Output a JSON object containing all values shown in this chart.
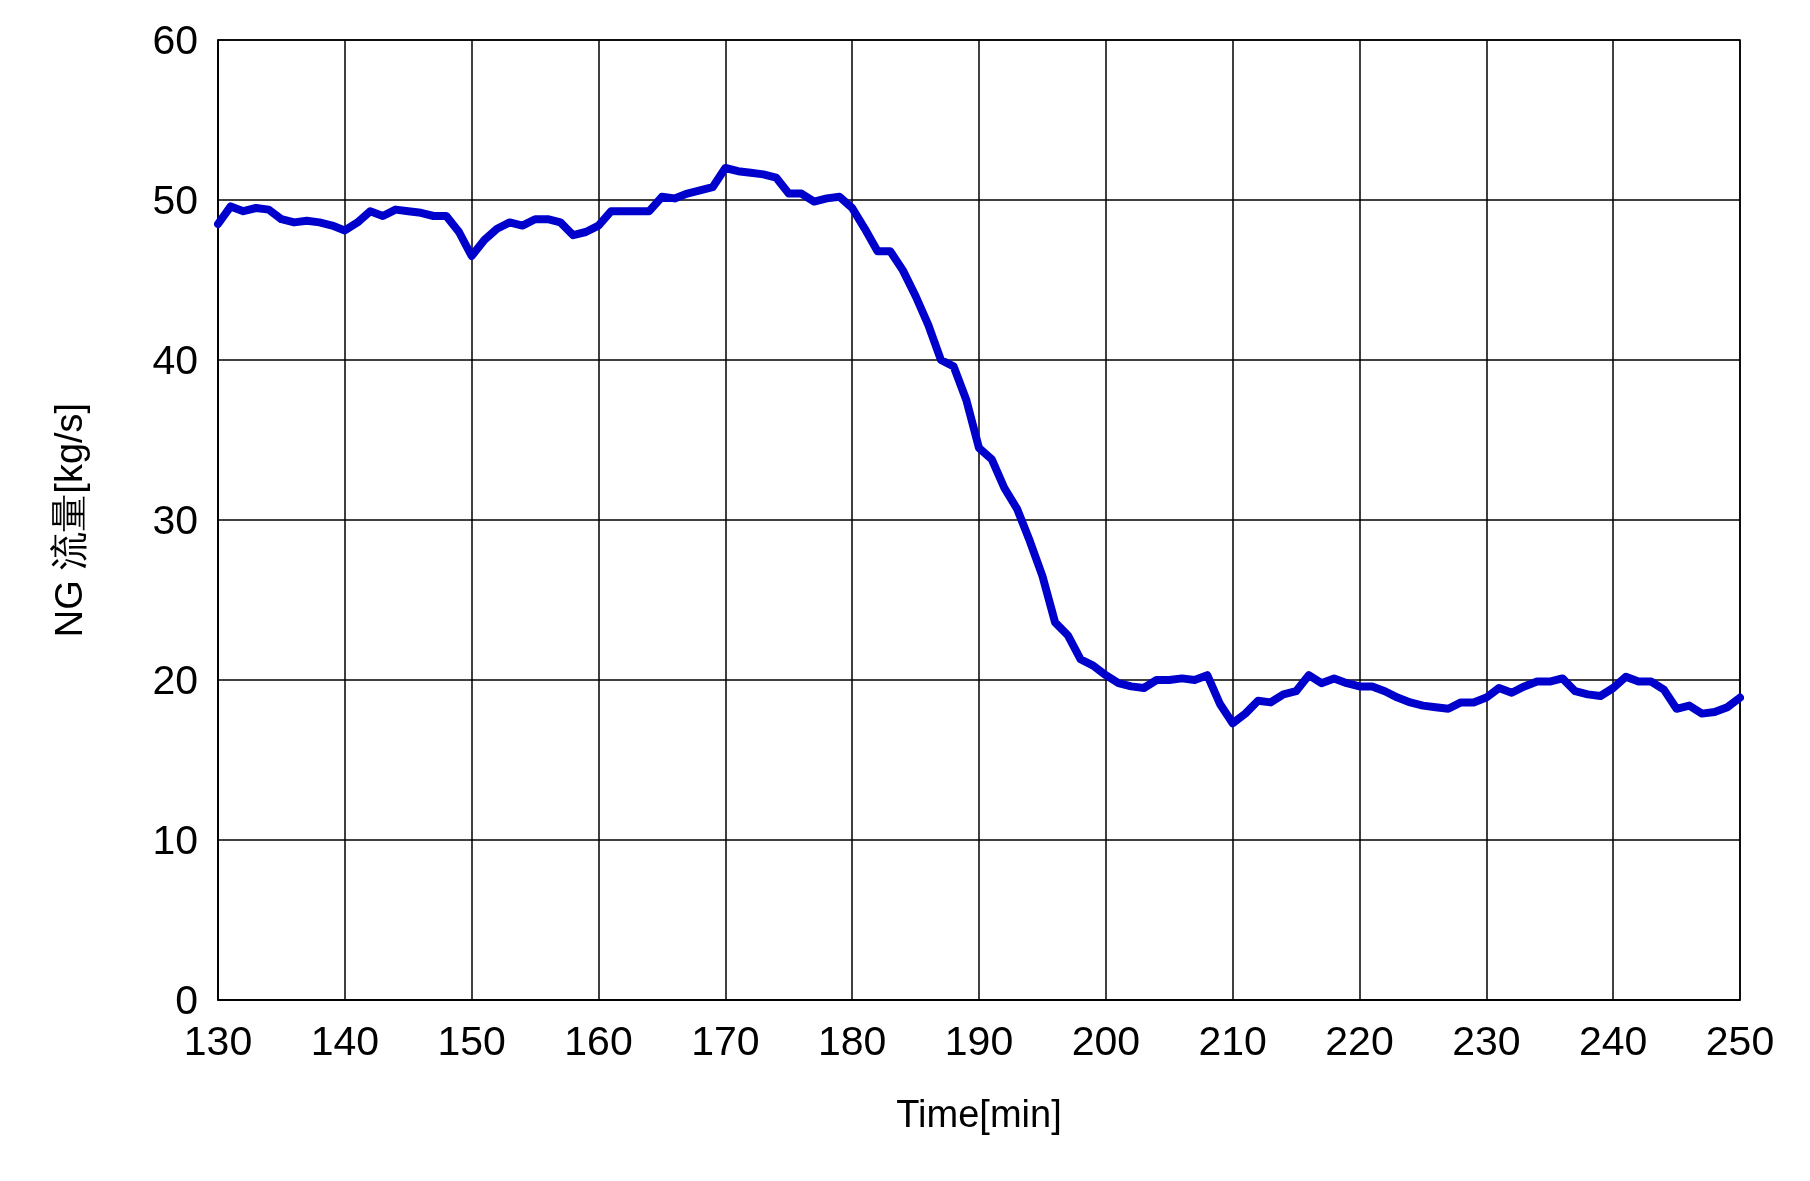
{
  "chart_data": {
    "type": "line",
    "xlabel": "Time[min]",
    "ylabel": "NG 流量[kg/s]",
    "x": [
      130,
      131,
      132,
      133,
      134,
      135,
      136,
      137,
      138,
      139,
      140,
      141,
      142,
      143,
      144,
      145,
      146,
      147,
      148,
      149,
      150,
      151,
      152,
      153,
      154,
      155,
      156,
      157,
      158,
      159,
      160,
      161,
      162,
      163,
      164,
      165,
      166,
      167,
      168,
      169,
      170,
      171,
      172,
      173,
      174,
      175,
      176,
      177,
      178,
      179,
      180,
      181,
      182,
      183,
      184,
      185,
      186,
      187,
      188,
      189,
      190,
      191,
      192,
      193,
      194,
      195,
      196,
      197,
      198,
      199,
      200,
      201,
      202,
      203,
      204,
      205,
      206,
      207,
      208,
      209,
      210,
      211,
      212,
      213,
      214,
      215,
      216,
      217,
      218,
      219,
      220,
      221,
      222,
      223,
      224,
      225,
      226,
      227,
      228,
      229,
      230,
      231,
      232,
      233,
      234,
      235,
      236,
      237,
      238,
      239,
      240,
      241,
      242,
      243,
      244,
      245,
      246,
      247,
      248,
      249,
      250
    ],
    "series": [
      {
        "color": "#0000cc",
        "values": [
          48.5,
          49.6,
          49.3,
          49.5,
          49.4,
          48.8,
          48.6,
          48.7,
          48.6,
          48.4,
          48.1,
          48.6,
          49.3,
          49.0,
          49.4,
          49.3,
          49.2,
          49.0,
          49.0,
          48.0,
          46.5,
          47.5,
          48.2,
          48.6,
          48.4,
          48.8,
          48.8,
          48.6,
          47.8,
          48.0,
          48.4,
          49.3,
          49.3,
          49.3,
          49.3,
          50.2,
          50.1,
          50.4,
          50.6,
          50.8,
          52.0,
          51.8,
          51.7,
          51.6,
          51.4,
          50.4,
          50.4,
          49.9,
          50.1,
          50.2,
          49.5,
          48.2,
          46.8,
          46.8,
          45.6,
          44.0,
          42.2,
          40.0,
          39.6,
          37.5,
          34.5,
          33.8,
          32.0,
          30.7,
          28.7,
          26.5,
          23.6,
          22.8,
          21.3,
          20.9,
          20.3,
          19.8,
          19.6,
          19.5,
          20.0,
          20.0,
          20.1,
          20.0,
          20.3,
          18.5,
          17.3,
          17.9,
          18.7,
          18.6,
          19.1,
          19.3,
          20.3,
          19.8,
          20.1,
          19.8,
          19.6,
          19.6,
          19.3,
          18.9,
          18.6,
          18.4,
          18.3,
          18.2,
          18.6,
          18.6,
          18.9,
          19.5,
          19.2,
          19.6,
          19.9,
          19.9,
          20.1,
          19.3,
          19.1,
          19.0,
          19.5,
          20.2,
          19.9,
          19.9,
          19.4,
          18.2,
          18.4,
          17.9,
          18.0,
          18.3,
          18.9
        ]
      }
    ],
    "xlim": [
      130,
      250
    ],
    "xticks": [
      130,
      140,
      150,
      160,
      170,
      180,
      190,
      200,
      210,
      220,
      230,
      240,
      250
    ],
    "ylim": [
      0,
      60
    ],
    "yticks": [
      0,
      10,
      20,
      30,
      40,
      50,
      60
    ],
    "grid": true,
    "line_style": "solid"
  }
}
